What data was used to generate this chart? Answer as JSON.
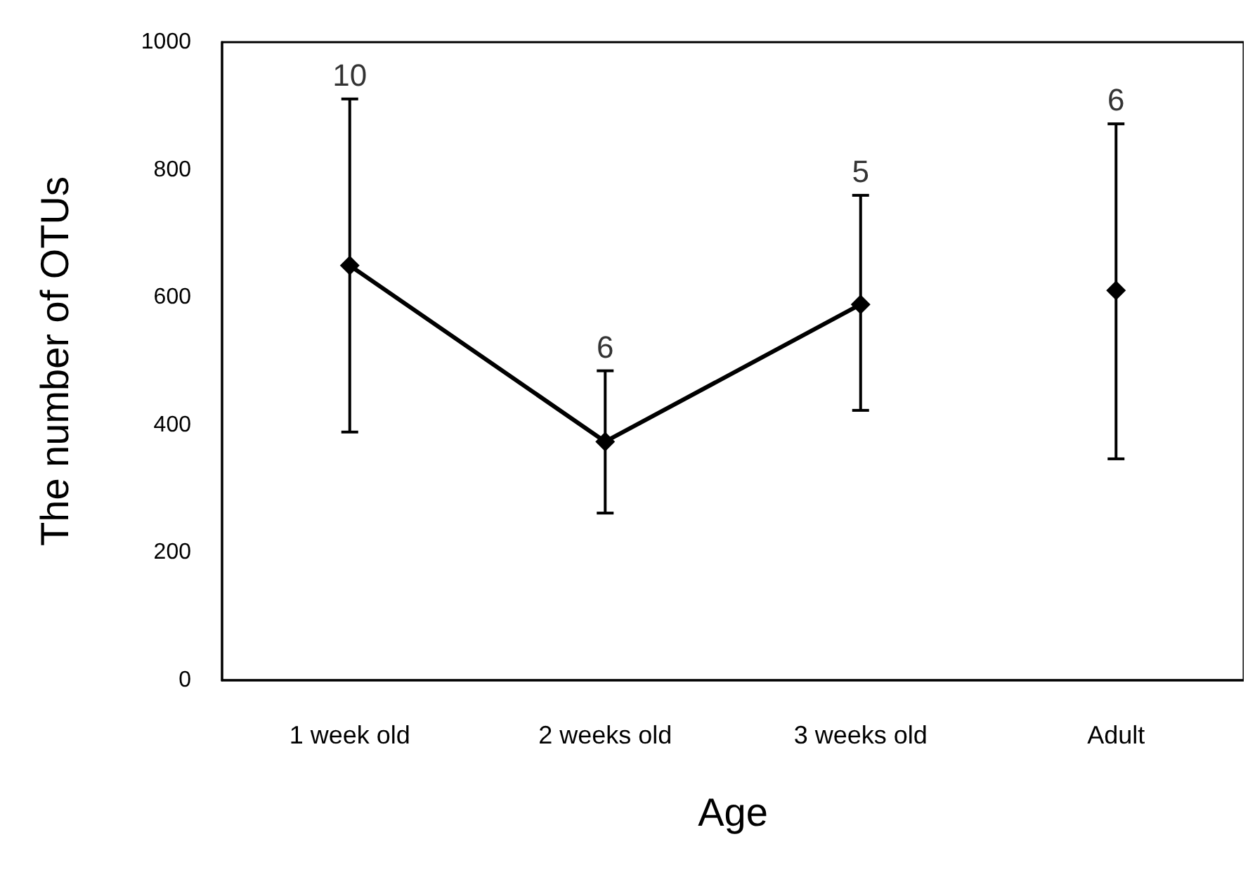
{
  "chart_data": {
    "type": "line",
    "xlabel": "Age",
    "ylabel": "The number of OTUs",
    "categories": [
      "1 week old",
      "2 weeks old",
      "3 weeks old",
      "Adult"
    ],
    "series": [
      {
        "color": "#000000",
        "values": [
          650,
          374,
          589,
          null
        ],
        "errors": [
          [
            389,
            911
          ],
          [
            262,
            485
          ],
          [
            423,
            760
          ],
          null
        ]
      },
      {
        "type": "scatter",
        "color": "#000000",
        "values": [
          null,
          null,
          null,
          611
        ],
        "errors": [
          null,
          null,
          null,
          [
            347,
            872
          ]
        ]
      }
    ],
    "annotations": [
      {
        "text": "10",
        "x": "1 week old",
        "y": 911
      },
      {
        "text": "6",
        "x": "2 weeks old",
        "y": 485
      },
      {
        "text": "5",
        "x": "3 weeks old",
        "y": 760
      },
      {
        "text": "6",
        "x": "Adult",
        "y": 872
      }
    ],
    "ylim": [
      0,
      1000
    ],
    "yticks": [
      0,
      200,
      400,
      600,
      800,
      1000
    ],
    "grid": false,
    "marker": "diamond",
    "line_style": "solid"
  }
}
